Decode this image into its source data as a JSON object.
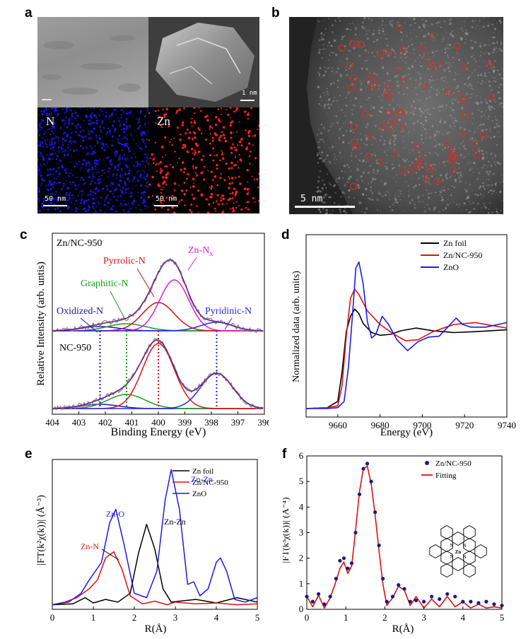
{
  "panels": {
    "a": "a",
    "b": "b",
    "c": "c",
    "d": "d",
    "e": "e",
    "f": "f"
  },
  "panel_a": {
    "map_n_label": "N",
    "map_zn_label": "Zn",
    "scale_sem": "1 nm",
    "scale_n": "50 nm",
    "scale_zn": "50 nm",
    "colors": {
      "n_dots": "#1a1aff",
      "zn_dots": "#ff2020"
    }
  },
  "panel_b": {
    "scale": "5 nm",
    "circle_color": "#d23030"
  },
  "chart_data": [
    {
      "id": "c",
      "type": "line",
      "xlabel": "Binding Energy (eV)",
      "ylabel": "Relative Intensity (arb. untis)",
      "xlim": [
        404,
        396
      ],
      "x_ticks": [
        "404",
        "403",
        "402",
        "401",
        "400",
        "399",
        "398",
        "397",
        "396"
      ],
      "labels": {
        "top_sample": "Zn/NC-950",
        "bottom_sample": "NC-950",
        "pyrrolic": "Pyrrolic-N",
        "graphitic": "Graphitic-N",
        "oxidized": "Oxidized-N",
        "pyridinic": "Pyridinic-N",
        "znnx": "Zn-N",
        "znnx_sub": "x"
      },
      "peaks_eV": {
        "oxidized": 402.2,
        "graphitic": 401.2,
        "pyrrolic": 400.0,
        "zn_nx": 399.4,
        "pyridinic": 397.8
      },
      "colors": {
        "oxidized": "#1a1aa8",
        "graphitic": "#1a9c1a",
        "pyrrolic": "#e01010",
        "zn_nx": "#e018e0",
        "pyridinic": "#2a2ae0",
        "envelope": "#6a2a8a",
        "raw": "#8a8a8a"
      }
    },
    {
      "id": "d",
      "type": "line",
      "xlabel": "Energy (eV)",
      "ylabel": "Normalized data (arb. units)",
      "xlim": [
        9645,
        9740
      ],
      "x_ticks": [
        "9660",
        "9680",
        "9700",
        "9720",
        "9740"
      ],
      "series": [
        {
          "name": "Zn foil",
          "color": "#000000",
          "x": [
            9645,
            9655,
            9660,
            9662,
            9664,
            9666,
            9668,
            9670,
            9672,
            9676,
            9680,
            9685,
            9690,
            9697,
            9705,
            9715,
            9725,
            9740
          ],
          "y": [
            0.0,
            0.01,
            0.08,
            0.4,
            0.85,
            1.02,
            1.1,
            1.05,
            0.94,
            0.84,
            0.81,
            0.82,
            0.86,
            0.89,
            0.86,
            0.84,
            0.85,
            0.87
          ]
        },
        {
          "name": "Zn/NC-950",
          "color": "#e01010",
          "x": [
            9645,
            9655,
            9660,
            9662,
            9664,
            9666,
            9668,
            9670,
            9674,
            9680,
            9686,
            9692,
            9698,
            9705,
            9715,
            9725,
            9740
          ],
          "y": [
            0.0,
            0.01,
            0.03,
            0.25,
            0.8,
            1.22,
            1.32,
            1.26,
            1.08,
            0.93,
            0.83,
            0.75,
            0.76,
            0.85,
            0.93,
            0.95,
            0.89
          ]
        },
        {
          "name": "ZnO",
          "color": "#1a1aee",
          "x": [
            9645,
            9655,
            9660,
            9663,
            9665,
            9667,
            9668.5,
            9670,
            9672,
            9674,
            9676,
            9678,
            9681,
            9684,
            9688,
            9693,
            9698,
            9703,
            9708,
            9712,
            9716,
            9719,
            9723,
            9730,
            9740
          ],
          "y": [
            0.0,
            0.0,
            0.01,
            0.08,
            0.45,
            1.05,
            1.55,
            1.62,
            1.38,
            0.96,
            0.78,
            0.82,
            1.02,
            0.93,
            0.76,
            0.64,
            0.74,
            0.79,
            0.8,
            0.9,
            1.0,
            0.93,
            0.9,
            0.9,
            0.95
          ]
        }
      ]
    },
    {
      "id": "e",
      "type": "line",
      "xlabel": "R(Å)",
      "ylabel": "|FT(k²χ(k))| (Å⁻³)",
      "xlim": [
        0,
        5
      ],
      "x_ticks": [
        "0",
        "1",
        "2",
        "3",
        "4",
        "5"
      ],
      "annotations": {
        "zn_o": "Zn-O",
        "zn_n": "Zn-N",
        "zn_zn_foil": "Zn-Zn",
        "zn_zn_oxide": "Zn-Zn"
      },
      "series": [
        {
          "name": "Zn foil",
          "color": "#000000",
          "x": [
            0,
            0.5,
            0.8,
            1.0,
            1.3,
            1.6,
            1.9,
            2.1,
            2.3,
            2.5,
            2.7,
            2.9,
            3.1,
            3.5,
            4.0,
            4.5,
            5.0
          ],
          "y": [
            0.02,
            0.03,
            0.1,
            0.04,
            0.08,
            0.05,
            0.15,
            0.6,
            0.93,
            0.65,
            0.2,
            0.05,
            0.06,
            0.08,
            0.04,
            0.1,
            0.05
          ]
        },
        {
          "name": "Zn/NC-950",
          "color": "#e01010",
          "x": [
            0,
            0.3,
            0.6,
            0.9,
            1.1,
            1.3,
            1.5,
            1.7,
            1.9,
            2.2,
            2.5,
            2.8,
            3.0,
            3.5,
            4.0,
            4.5,
            5.0
          ],
          "y": [
            0.02,
            0.05,
            0.1,
            0.2,
            0.3,
            0.55,
            0.62,
            0.42,
            0.12,
            0.03,
            0.06,
            0.02,
            0.05,
            0.03,
            0.04,
            0.02,
            0.03
          ]
        },
        {
          "name": "ZnO",
          "color": "#1a1aee",
          "x": [
            0,
            0.4,
            0.7,
            0.9,
            1.05,
            1.2,
            1.4,
            1.55,
            1.75,
            2.0,
            2.3,
            2.55,
            2.75,
            2.9,
            3.1,
            3.3,
            3.45,
            3.6,
            3.8,
            4.0,
            4.1,
            4.25,
            4.45,
            4.7,
            5.0
          ],
          "y": [
            0.02,
            0.05,
            0.15,
            0.3,
            0.4,
            0.5,
            0.95,
            1.1,
            0.7,
            0.15,
            0.1,
            0.4,
            1.2,
            1.55,
            1.1,
            0.25,
            0.28,
            0.12,
            0.2,
            0.5,
            0.55,
            0.4,
            0.08,
            0.05,
            0.1
          ]
        }
      ]
    },
    {
      "id": "f",
      "type": "scatter",
      "xlabel": "R(Å)",
      "ylabel": "|FT(k³χ(k))| (Å⁻⁴)",
      "xlim": [
        0,
        5
      ],
      "ylim": [
        0,
        6
      ],
      "x_ticks": [
        "0",
        "1",
        "2",
        "3",
        "4",
        "5"
      ],
      "y_ticks": [
        "0",
        "1",
        "2",
        "3",
        "4",
        "5",
        "6"
      ],
      "legend": {
        "data": "Zn/NC-950",
        "fit": "Fitting"
      },
      "molecule_label": "N",
      "molecule_center": "Zn",
      "series": [
        {
          "name": "Zn/NC-950",
          "color": "#1a1a80",
          "x": [
            0,
            0.15,
            0.3,
            0.45,
            0.6,
            0.75,
            0.85,
            0.95,
            1.05,
            1.15,
            1.25,
            1.35,
            1.45,
            1.55,
            1.65,
            1.75,
            1.85,
            1.95,
            2.05,
            2.2,
            2.35,
            2.5,
            2.65,
            2.8,
            3.0,
            3.2,
            3.4,
            3.6,
            3.8,
            4.0,
            4.2,
            4.4,
            4.6,
            4.8,
            5.0
          ],
          "y": [
            0.5,
            0.3,
            0.6,
            0.2,
            0.5,
            1.2,
            1.9,
            2.0,
            1.6,
            1.8,
            3.0,
            4.5,
            5.5,
            5.7,
            5.0,
            3.8,
            2.5,
            1.2,
            0.3,
            0.5,
            0.95,
            0.8,
            0.3,
            0.35,
            0.3,
            0.5,
            0.4,
            0.6,
            0.5,
            0.3,
            0.3,
            0.25,
            0.3,
            0.2,
            0.15
          ]
        },
        {
          "name": "Fitting",
          "color": "#e01010",
          "x": [
            0,
            0.15,
            0.3,
            0.45,
            0.6,
            0.75,
            0.85,
            0.95,
            1.05,
            1.15,
            1.25,
            1.35,
            1.45,
            1.55,
            1.65,
            1.75,
            1.85,
            1.95,
            2.05,
            2.2,
            2.35,
            2.5,
            2.65,
            2.8,
            3.0,
            3.2,
            3.4,
            3.6,
            3.8,
            4.0,
            4.2,
            4.4,
            4.6,
            4.8,
            5.0
          ],
          "y": [
            0.5,
            0.1,
            0.55,
            0.05,
            0.45,
            1.1,
            1.6,
            1.85,
            1.4,
            1.7,
            3.1,
            4.6,
            5.5,
            5.6,
            4.9,
            3.7,
            2.3,
            1.0,
            0.15,
            0.45,
            0.9,
            0.75,
            0.15,
            0.5,
            0.05,
            0.4,
            0.1,
            0.5,
            0.1,
            0.3,
            0.05,
            0.2,
            0.05,
            0.1,
            0.05
          ]
        }
      ]
    }
  ]
}
